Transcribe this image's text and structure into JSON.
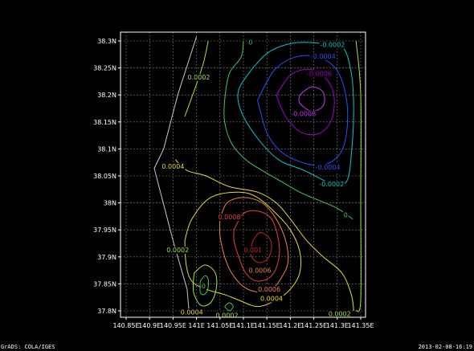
{
  "footer": {
    "left": "GrADS: COLA/IGES",
    "right": "2013-02-08-16:19"
  },
  "colors": {
    "background": "#000000",
    "frame": "#ffffff",
    "grid": "#a8a8a8",
    "coastline": "#c8c8c8"
  },
  "chart_data": {
    "type": "contour",
    "title": "",
    "xlabel": "",
    "ylabel": "",
    "grid": true,
    "xlim": [
      140.85,
      141.35
    ],
    "ylim": [
      37.8,
      38.3
    ],
    "x_ticks": [
      {
        "value": 140.85,
        "label": "140.85E"
      },
      {
        "value": 140.9,
        "label": "140.9E"
      },
      {
        "value": 140.95,
        "label": "140.95E"
      },
      {
        "value": 141.0,
        "label": "141E"
      },
      {
        "value": 141.05,
        "label": "141.05E"
      },
      {
        "value": 141.1,
        "label": "141.1E"
      },
      {
        "value": 141.15,
        "label": "141.15E"
      },
      {
        "value": 141.2,
        "label": "141.2E"
      },
      {
        "value": 141.25,
        "label": "141.25E"
      },
      {
        "value": 141.3,
        "label": "141.3E"
      },
      {
        "value": 141.35,
        "label": "141.35E"
      }
    ],
    "y_ticks": [
      {
        "value": 37.8,
        "label": "37.8N"
      },
      {
        "value": 37.85,
        "label": "37.85N"
      },
      {
        "value": 37.9,
        "label": "37.9N"
      },
      {
        "value": 37.95,
        "label": "37.95N"
      },
      {
        "value": 38.0,
        "label": "38N"
      },
      {
        "value": 38.05,
        "label": "38.05N"
      },
      {
        "value": 38.1,
        "label": "38.1N"
      },
      {
        "value": 38.15,
        "label": "38.15N"
      },
      {
        "value": 38.2,
        "label": "38.2N"
      },
      {
        "value": 38.25,
        "label": "38.25N"
      },
      {
        "value": 38.3,
        "label": "38.3N"
      }
    ],
    "coastline": [
      [
        141.0,
        38.308
      ],
      [
        140.96,
        38.2
      ],
      [
        140.93,
        38.1
      ],
      [
        140.91,
        38.064
      ],
      [
        140.95,
        37.93
      ],
      [
        140.98,
        37.84
      ],
      [
        140.985,
        37.79
      ]
    ],
    "contours": [
      {
        "level": "-0.0008",
        "color": "#c832ff",
        "path": [
          [
            141.22,
            38.2
          ],
          [
            141.245,
            38.215
          ],
          [
            141.27,
            38.205
          ],
          [
            141.27,
            38.18
          ],
          [
            141.245,
            38.17
          ],
          [
            141.22,
            38.185
          ],
          [
            141.22,
            38.2
          ]
        ]
      },
      {
        "level": "-0.0006",
        "color": "#a000c8",
        "path": [
          [
            141.17,
            38.2
          ],
          [
            141.205,
            38.24
          ],
          [
            141.255,
            38.245
          ],
          [
            141.29,
            38.21
          ],
          [
            141.29,
            38.16
          ],
          [
            141.265,
            38.13
          ],
          [
            141.225,
            38.13
          ],
          [
            141.19,
            38.16
          ],
          [
            141.17,
            38.2
          ]
        ]
      },
      {
        "level": "-0.0004",
        "color": "#2850ff",
        "path": [
          [
            141.13,
            38.19
          ],
          [
            141.165,
            38.245
          ],
          [
            141.21,
            38.27
          ],
          [
            141.26,
            38.27
          ],
          [
            141.3,
            38.245
          ],
          [
            141.32,
            38.19
          ],
          [
            141.32,
            38.13
          ],
          [
            141.305,
            38.09
          ],
          [
            141.27,
            38.07
          ],
          [
            141.225,
            38.075
          ],
          [
            141.18,
            38.095
          ],
          [
            141.15,
            38.13
          ],
          [
            141.13,
            38.19
          ]
        ]
      },
      {
        "level": "-0.0002",
        "color": "#00c8c8",
        "path": [
          [
            141.12,
            38.25
          ],
          [
            141.155,
            38.28
          ],
          [
            141.205,
            38.296
          ],
          [
            141.26,
            38.296
          ],
          [
            141.31,
            38.29
          ],
          [
            141.33,
            38.24
          ],
          [
            141.335,
            38.17
          ],
          [
            141.33,
            38.09
          ],
          [
            141.32,
            38.04
          ],
          [
            141.29,
            38.035
          ],
          [
            141.23,
            38.06
          ],
          [
            141.175,
            38.08
          ],
          [
            141.13,
            38.12
          ],
          [
            141.095,
            38.17
          ],
          [
            141.09,
            38.21
          ],
          [
            141.12,
            38.25
          ]
        ]
      },
      {
        "level": "0",
        "color": "#3cc85a",
        "path": [
          [
            141.1,
            38.3
          ],
          [
            141.095,
            38.27
          ],
          [
            141.07,
            38.24
          ],
          [
            141.06,
            38.19
          ],
          [
            141.06,
            38.15
          ],
          [
            141.075,
            38.11
          ],
          [
            141.105,
            38.08
          ],
          [
            141.14,
            38.06
          ],
          [
            141.18,
            38.04
          ],
          [
            141.22,
            38.02
          ],
          [
            141.26,
            38.005
          ],
          [
            141.3,
            37.99
          ],
          [
            141.333,
            37.97
          ]
        ]
      },
      {
        "level": "0.0002",
        "color": "#a0e632",
        "path": [
          [
            141.025,
            38.3
          ],
          [
            141.015,
            38.26
          ],
          [
            141.0,
            38.22
          ],
          [
            140.975,
            38.16
          ]
        ]
      },
      {
        "level": "0.0002",
        "color": "#a0e632",
        "path": [
          [
            141.34,
            38.3
          ],
          [
            141.35,
            38.2
          ],
          [
            141.35,
            38.0
          ],
          [
            141.35,
            37.82
          ],
          [
            141.34,
            37.8
          ]
        ]
      },
      {
        "level": "0.0004",
        "color": "#e6dc32",
        "path": [
          [
            140.955,
            38.08
          ],
          [
            140.98,
            38.06
          ],
          [
            141.02,
            38.05
          ],
          [
            141.07,
            38.03
          ],
          [
            141.13,
            38.02
          ],
          [
            141.17,
            38.0
          ],
          [
            141.2,
            37.97
          ],
          [
            141.235,
            37.93
          ],
          [
            141.27,
            37.9
          ],
          [
            141.31,
            37.87
          ],
          [
            141.33,
            37.83
          ],
          [
            141.335,
            37.8
          ]
        ]
      },
      {
        "level": "0.0004",
        "color": "#e6dc32",
        "path": [
          [
            140.975,
            37.93
          ],
          [
            140.99,
            37.97
          ],
          [
            141.03,
            38.01
          ],
          [
            141.09,
            38.02
          ],
          [
            141.13,
            38.01
          ],
          [
            141.17,
            37.98
          ],
          [
            141.2,
            37.95
          ],
          [
            141.22,
            37.91
          ],
          [
            141.22,
            37.87
          ],
          [
            141.2,
            37.84
          ],
          [
            141.17,
            37.82
          ],
          [
            141.13,
            37.808
          ],
          [
            141.09,
            37.82
          ],
          [
            141.06,
            37.83
          ],
          [
            141.02,
            37.84
          ],
          [
            140.99,
            37.855
          ],
          [
            140.978,
            37.885
          ],
          [
            140.975,
            37.93
          ]
        ]
      },
      {
        "level": "0.0006",
        "color": "#f0823c",
        "path": [
          [
            141.05,
            37.97
          ],
          [
            141.065,
            38.0
          ],
          [
            141.1,
            38.01
          ],
          [
            141.14,
            38.0
          ],
          [
            141.17,
            37.97
          ],
          [
            141.19,
            37.93
          ],
          [
            141.195,
            37.89
          ],
          [
            141.18,
            37.86
          ],
          [
            141.16,
            37.84
          ],
          [
            141.13,
            37.835
          ],
          [
            141.1,
            37.845
          ],
          [
            141.075,
            37.87
          ],
          [
            141.06,
            37.9
          ],
          [
            141.05,
            37.94
          ],
          [
            141.05,
            37.97
          ]
        ]
      },
      {
        "level": "0.0008",
        "color": "#f03c3c",
        "path": [
          [
            141.08,
            37.95
          ],
          [
            141.1,
            37.98
          ],
          [
            141.13,
            37.985
          ],
          [
            141.16,
            37.97
          ],
          [
            141.175,
            37.93
          ],
          [
            141.175,
            37.895
          ],
          [
            141.16,
            37.865
          ],
          [
            141.13,
            37.855
          ],
          [
            141.105,
            37.87
          ],
          [
            141.09,
            37.9
          ],
          [
            141.08,
            37.93
          ],
          [
            141.08,
            37.95
          ]
        ]
      },
      {
        "level": "0.001",
        "color": "#c81e1e",
        "path": [
          [
            141.12,
            37.93
          ],
          [
            141.135,
            37.945
          ],
          [
            141.155,
            37.935
          ],
          [
            141.16,
            37.915
          ],
          [
            141.15,
            37.895
          ],
          [
            141.13,
            37.89
          ],
          [
            141.115,
            37.905
          ],
          [
            141.12,
            37.93
          ]
        ]
      },
      {
        "level": "0",
        "color": "#3cc85a",
        "path": [
          [
            141.008,
            37.855
          ],
          [
            141.018,
            37.865
          ],
          [
            141.025,
            37.858
          ],
          [
            141.024,
            37.84
          ],
          [
            141.016,
            37.83
          ],
          [
            141.008,
            37.835
          ],
          [
            141.008,
            37.855
          ]
        ]
      },
      {
        "level": "0",
        "color": "#3cc85a",
        "path": [
          [
            141.06,
            37.808
          ],
          [
            141.07,
            37.815
          ],
          [
            141.078,
            37.808
          ],
          [
            141.07,
            37.8
          ],
          [
            141.06,
            37.808
          ]
        ]
      },
      {
        "level": "0.0002",
        "color": "#a0e632",
        "path": [
          [
            140.995,
            37.87
          ],
          [
            141.018,
            37.885
          ],
          [
            141.04,
            37.87
          ],
          [
            141.042,
            37.84
          ],
          [
            141.03,
            37.815
          ],
          [
            141.01,
            37.81
          ],
          [
            140.995,
            37.83
          ],
          [
            140.993,
            37.85
          ],
          [
            140.995,
            37.87
          ]
        ]
      }
    ],
    "labels": [
      {
        "text": "0",
        "lon": 141.115,
        "lat": 38.298,
        "color": "#3cc85a"
      },
      {
        "text": "-0.0002",
        "lon": 141.29,
        "lat": 38.293,
        "color": "#00c8c8"
      },
      {
        "text": "-0.0004",
        "lon": 141.27,
        "lat": 38.272,
        "color": "#2850ff"
      },
      {
        "text": "-0.0006",
        "lon": 141.262,
        "lat": 38.24,
        "color": "#a000c8"
      },
      {
        "text": "-0.0008",
        "lon": 141.228,
        "lat": 38.165,
        "color": "#c832ff"
      },
      {
        "text": "0.0002",
        "lon": 141.005,
        "lat": 38.233,
        "color": "#a0e632"
      },
      {
        "text": "0.0004",
        "lon": 140.95,
        "lat": 38.068,
        "color": "#e6dc32"
      },
      {
        "text": "-0.0004",
        "lon": 141.28,
        "lat": 38.066,
        "color": "#2850ff"
      },
      {
        "text": "-0.0002",
        "lon": 141.288,
        "lat": 38.035,
        "color": "#00c8c8"
      },
      {
        "text": "0",
        "lon": 141.318,
        "lat": 37.978,
        "color": "#3cc85a"
      },
      {
        "text": "0.0008",
        "lon": 141.07,
        "lat": 37.974,
        "color": "#f03c3c"
      },
      {
        "text": "0.001",
        "lon": 141.12,
        "lat": 37.913,
        "color": "#c81e1e"
      },
      {
        "text": "0.0002",
        "lon": 140.96,
        "lat": 37.913,
        "color": "#a0e632"
      },
      {
        "text": "0",
        "lon": 141.015,
        "lat": 37.846,
        "color": "#3cc85a"
      },
      {
        "text": "0.0006",
        "lon": 141.135,
        "lat": 37.875,
        "color": "#f0823c"
      },
      {
        "text": "0.0006",
        "lon": 141.155,
        "lat": 37.84,
        "color": "#f0823c"
      },
      {
        "text": "0.0004",
        "lon": 141.16,
        "lat": 37.823,
        "color": "#e6dc32"
      },
      {
        "text": "0.0004",
        "lon": 140.99,
        "lat": 37.798,
        "color": "#e6dc32"
      },
      {
        "text": "0.0002",
        "lon": 141.065,
        "lat": 37.792,
        "color": "#a0e632"
      },
      {
        "text": "0.0002",
        "lon": 141.305,
        "lat": 37.795,
        "color": "#a0e632"
      }
    ]
  }
}
